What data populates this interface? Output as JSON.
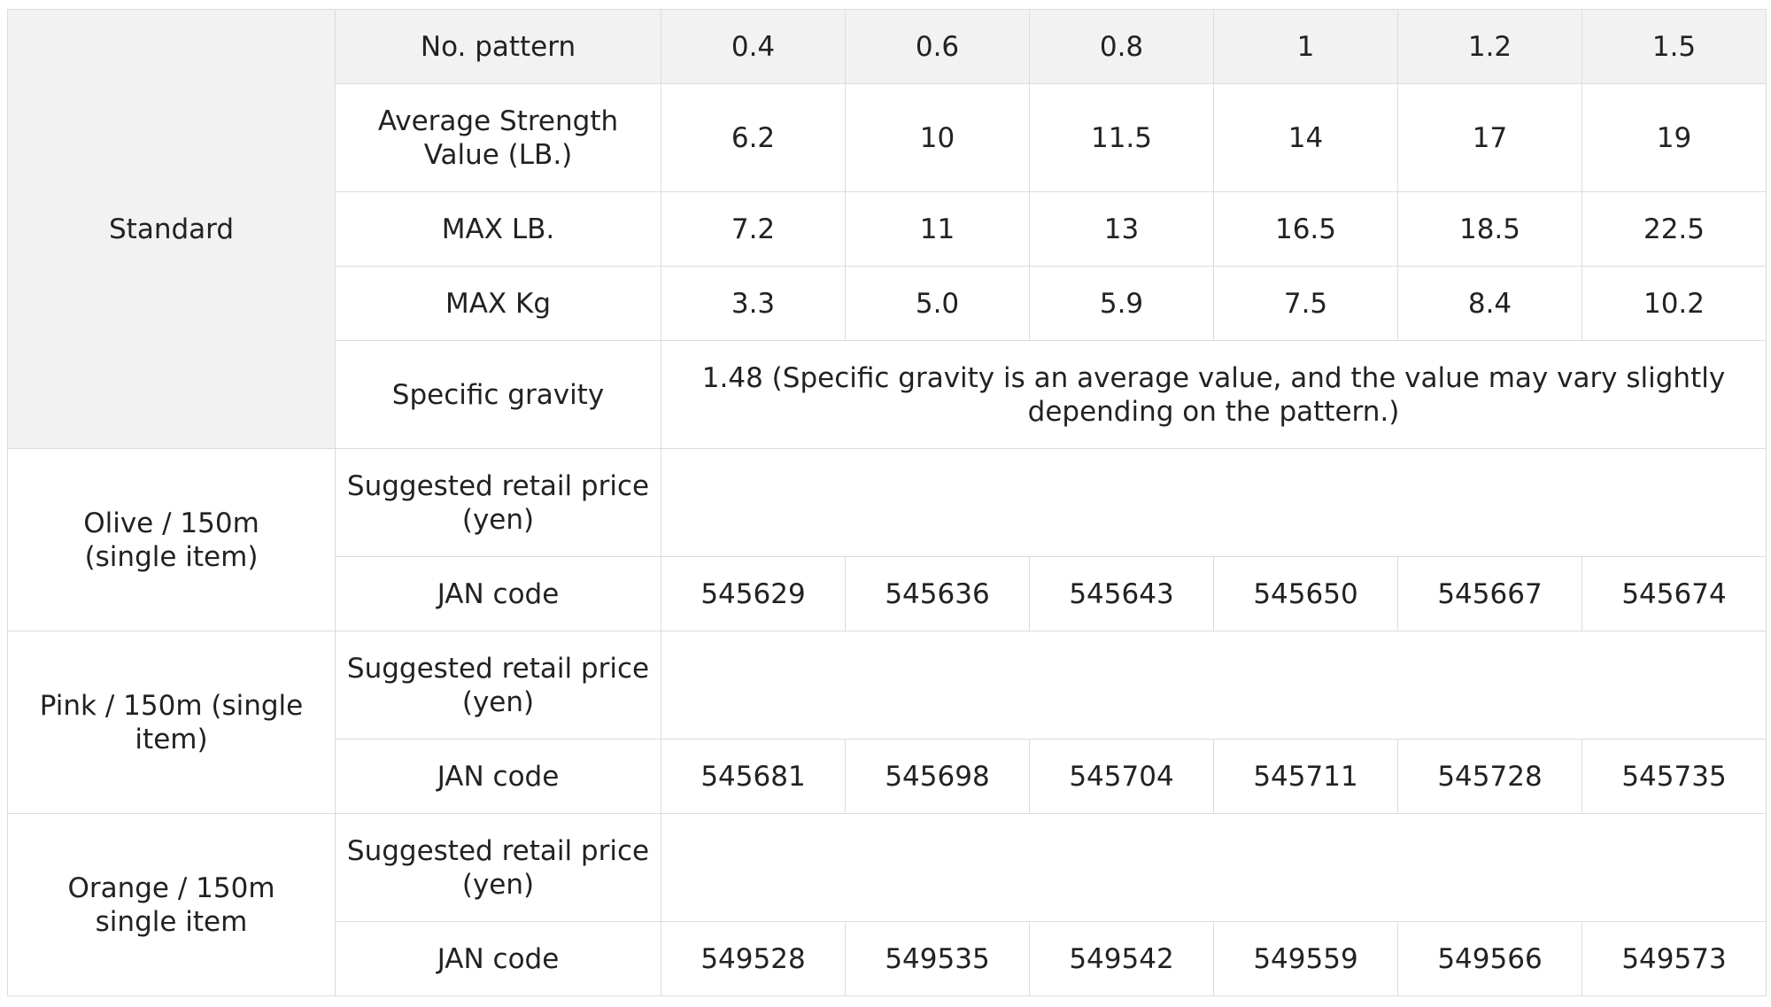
{
  "table": {
    "patterns": [
      "0.4",
      "0.6",
      "0.8",
      "1",
      "1.2",
      "1.5"
    ],
    "standard": {
      "label": "Standard",
      "pattern_label": "No. pattern",
      "avg_strength": {
        "label": "Average Strength Value (LB.)",
        "values": [
          "6.2",
          "10",
          "11.5",
          "14",
          "17",
          "19"
        ]
      },
      "max_lb": {
        "label": "MAX LB.",
        "values": [
          "7.2",
          "11",
          "13",
          "16.5",
          "18.5",
          "22.5"
        ]
      },
      "max_kg": {
        "label": "MAX Kg",
        "values": [
          "3.3",
          "5.0",
          "5.9",
          "7.5",
          "8.4",
          "10.2"
        ]
      },
      "specific_gravity": {
        "label": "Specific gravity",
        "value": "1.48 (Specific gravity is an average value, and the value may vary slightly depending on the pattern.)"
      }
    },
    "products": [
      {
        "label": "Olive / 150m (single item)",
        "price_label": "Suggested retail price (yen)",
        "jan_label": "JAN code",
        "jan_codes": [
          "545629",
          "545636",
          "545643",
          "545650",
          "545667",
          "545674"
        ]
      },
      {
        "label": "Pink / 150m (single item)",
        "price_label": "Suggested retail price (yen)",
        "jan_label": "JAN code",
        "jan_codes": [
          "545681",
          "545698",
          "545704",
          "545711",
          "545728",
          "545735"
        ]
      },
      {
        "label": "Orange / 150m single item",
        "price_label": "Suggested retail price (yen)",
        "jan_label": "JAN code",
        "jan_codes": [
          "549528",
          "549535",
          "549542",
          "549559",
          "549566",
          "549573"
        ]
      }
    ],
    "colors": {
      "header_bg": "#f2f2f2",
      "border": "#dcdcdc",
      "text": "#222222"
    }
  }
}
